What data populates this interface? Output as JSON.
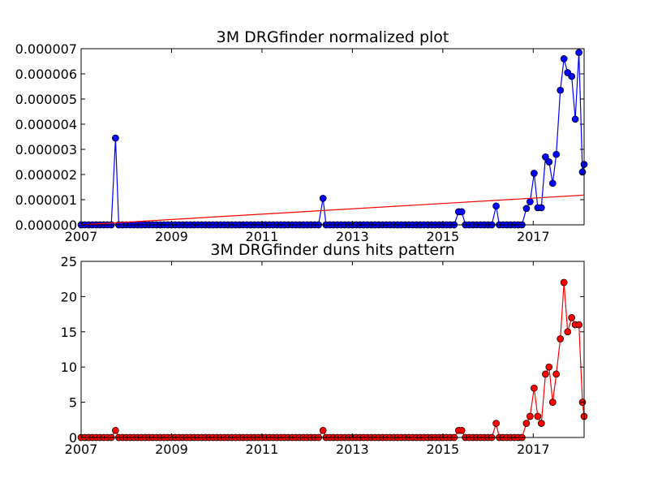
{
  "chart_data": [
    {
      "type": "line",
      "title": "3M DRGfinder normalized plot",
      "xlabel": "",
      "ylabel": "",
      "xlim": [
        2007.0,
        2018.125
      ],
      "ylim": [
        0,
        7e-06
      ],
      "grid": false,
      "x_ticks": [
        2007,
        2009,
        2011,
        2013,
        2015,
        2017
      ],
      "x_tick_labels": [
        "2007",
        "2009",
        "2011",
        "2013",
        "2015",
        "2017"
      ],
      "y_ticks": [
        0,
        1e-06,
        2e-06,
        3e-06,
        4e-06,
        5e-06,
        6e-06,
        7e-06
      ],
      "y_tick_labels": [
        "0.000000",
        "0.000001",
        "0.000002",
        "0.000003",
        "0.000004",
        "0.000005",
        "0.000006",
        "0.000007"
      ],
      "series": [
        {
          "kind": "line-markers",
          "color": "#0000ff",
          "marker_color": "#0000ff",
          "points": [
            [
              2007.76,
              3.45e-06
            ],
            [
              2012.35,
              1.05e-06
            ],
            [
              2015.35,
              5.2e-07
            ],
            [
              2015.42,
              5.2e-07
            ],
            [
              2016.18,
              7.5e-07
            ],
            [
              2016.85,
              6.5e-07
            ],
            [
              2016.93,
              9.2e-07
            ],
            [
              2017.02,
              2.05e-06
            ],
            [
              2017.1,
              6.8e-07
            ],
            [
              2017.18,
              6.8e-07
            ],
            [
              2017.27,
              2.7e-06
            ],
            [
              2017.35,
              2.5e-06
            ],
            [
              2017.43,
              1.65e-06
            ],
            [
              2017.51,
              2.8e-06
            ],
            [
              2017.6,
              5.35e-06
            ],
            [
              2017.68,
              6.6e-06
            ],
            [
              2017.76,
              6.05e-06
            ],
            [
              2017.85,
              5.9e-06
            ],
            [
              2017.93,
              4.2e-06
            ],
            [
              2018.01,
              6.85e-06
            ],
            [
              2018.09,
              2.1e-06
            ],
            [
              2018.125,
              2.4e-06
            ]
          ]
        },
        {
          "kind": "trend",
          "color": "#ff0000",
          "points": [
            [
              2007.0,
              0.0
            ],
            [
              2018.125,
              1.18e-06
            ]
          ]
        }
      ]
    },
    {
      "type": "line",
      "title": "3M DRGfinder duns hits pattern",
      "xlabel": "",
      "ylabel": "",
      "xlim": [
        2007.0,
        2018.125
      ],
      "ylim": [
        0,
        25
      ],
      "grid": false,
      "x_ticks": [
        2007,
        2009,
        2011,
        2013,
        2015,
        2017
      ],
      "x_tick_labels": [
        "2007",
        "2009",
        "2011",
        "2013",
        "2015",
        "2017"
      ],
      "y_ticks": [
        0,
        5,
        10,
        15,
        20,
        25
      ],
      "y_tick_labels": [
        "0",
        "5",
        "10",
        "15",
        "20",
        "25"
      ],
      "series": [
        {
          "kind": "line-markers",
          "color": "#ff0000",
          "marker_color": "#ff0000",
          "points": [
            [
              2007.76,
              1
            ],
            [
              2012.35,
              1
            ],
            [
              2015.35,
              1
            ],
            [
              2015.42,
              1
            ],
            [
              2016.18,
              2
            ],
            [
              2016.85,
              2
            ],
            [
              2016.93,
              3
            ],
            [
              2017.02,
              7
            ],
            [
              2017.1,
              3
            ],
            [
              2017.18,
              2
            ],
            [
              2017.27,
              9
            ],
            [
              2017.35,
              10
            ],
            [
              2017.43,
              5
            ],
            [
              2017.51,
              9
            ],
            [
              2017.6,
              14
            ],
            [
              2017.68,
              22
            ],
            [
              2017.76,
              15
            ],
            [
              2017.85,
              17
            ],
            [
              2017.93,
              16
            ],
            [
              2018.01,
              16
            ],
            [
              2018.09,
              5
            ],
            [
              2018.125,
              3
            ]
          ]
        }
      ]
    }
  ]
}
